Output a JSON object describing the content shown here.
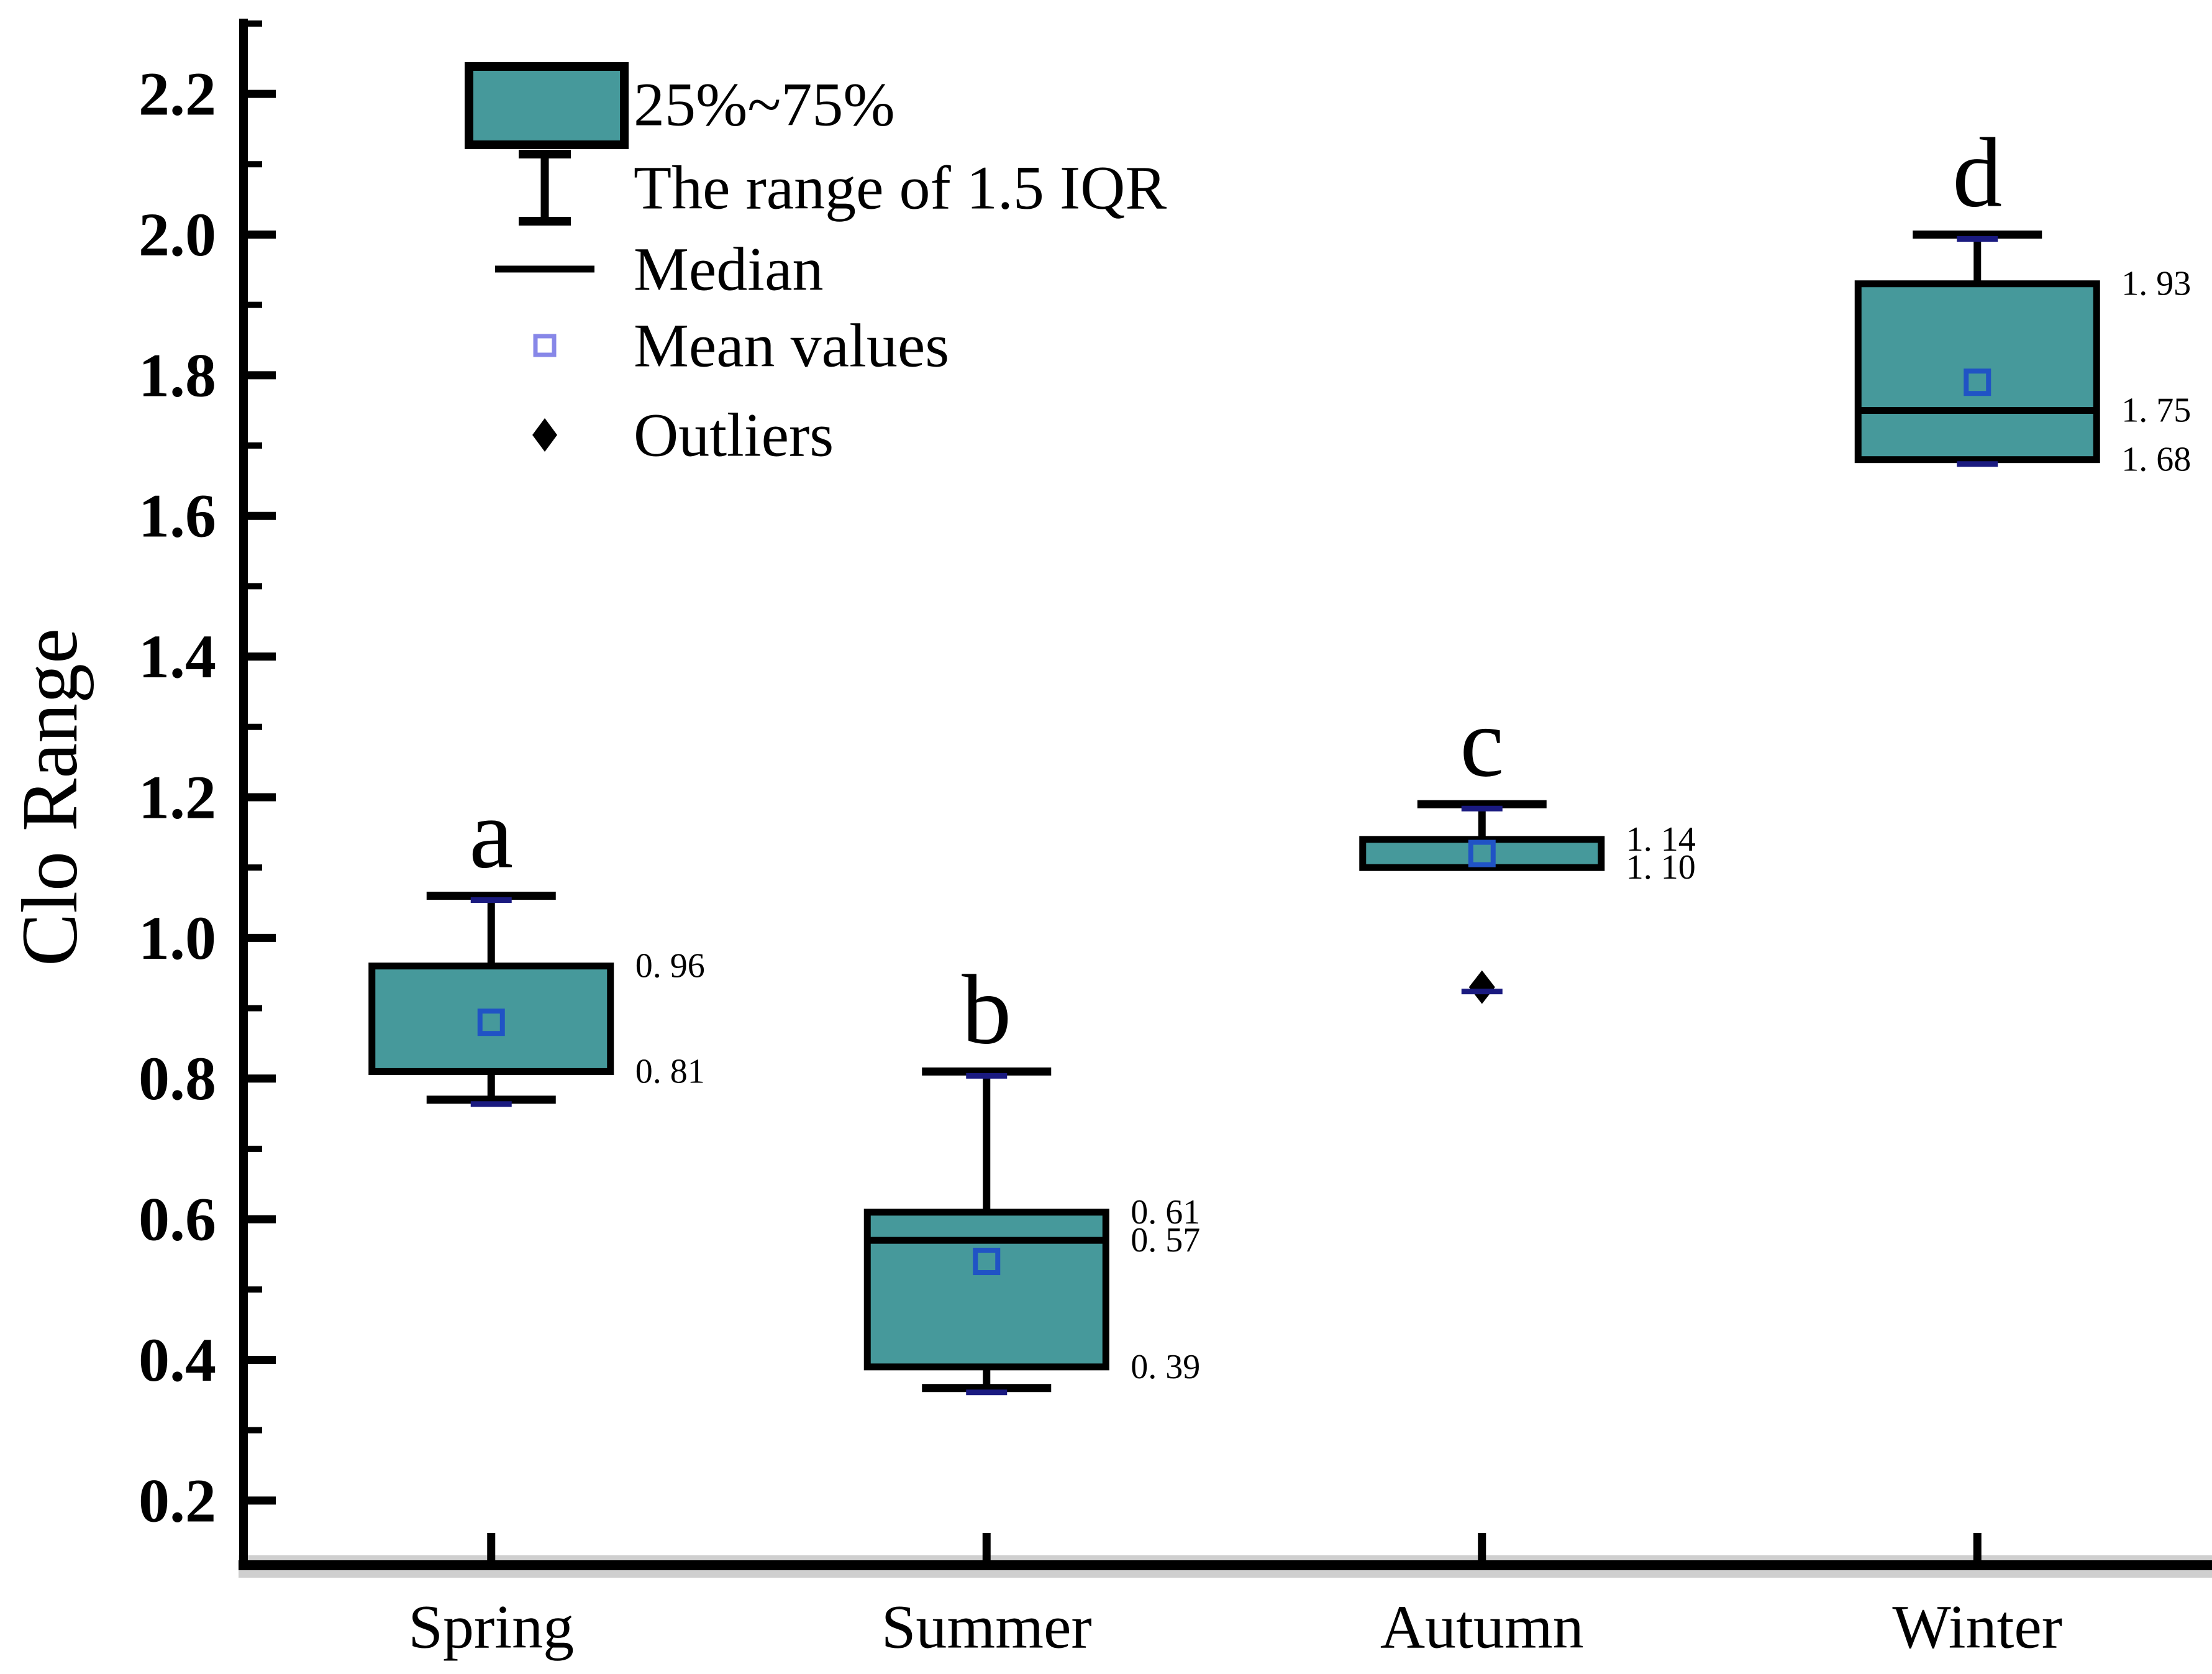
{
  "chart_data": {
    "type": "boxplot",
    "title": "",
    "ylabel": "Clo Range",
    "xlabel": "",
    "grid": false,
    "legend_position": "top-left-inside",
    "categories": [
      "Spring",
      "Summer",
      "Autumn",
      "Winter"
    ],
    "ylim": [
      0.108,
      2.307
    ],
    "yticks": [
      {
        "v": 0.2,
        "label": "0.2"
      },
      {
        "v": 0.4,
        "label": "0.4"
      },
      {
        "v": 0.6,
        "label": "0.6"
      },
      {
        "v": 0.8,
        "label": "0.8"
      },
      {
        "v": 1.0,
        "label": "1.0"
      },
      {
        "v": 1.2,
        "label": "1.2"
      },
      {
        "v": 1.4,
        "label": "1.4"
      },
      {
        "v": 1.6,
        "label": "1.6"
      },
      {
        "v": 1.8,
        "label": "1.8"
      },
      {
        "v": 2.0,
        "label": "2.0"
      },
      {
        "v": 2.2,
        "label": "2.2"
      }
    ],
    "yticks_minor": [
      0.3,
      0.5,
      0.7,
      0.9,
      1.1,
      1.3,
      1.5,
      1.7,
      1.9,
      2.1,
      2.3
    ],
    "colors": {
      "box_fill": "#46999B",
      "box_stroke": "#000000",
      "axis": "#000000",
      "axis_halo": "#CFCFCF",
      "mean_marker": "#2053C5",
      "legend_mean_marker": "#8787E8",
      "minmax_dash": "#1A1A80",
      "value_label": "#6B7178",
      "text": "#000000"
    },
    "series": [
      {
        "category": "Spring",
        "sig_letter": "a",
        "whisker_high": 1.06,
        "q3": 0.96,
        "median": null,
        "mean": 0.88,
        "q1": 0.81,
        "whisker_low": 0.77,
        "data_max": 1.06,
        "data_min": 0.77,
        "outliers": [],
        "value_labels": [
          {
            "v": 0.96,
            "text": "0. 96"
          },
          {
            "v": 0.81,
            "text": "0. 81"
          }
        ]
      },
      {
        "category": "Summer",
        "sig_letter": "b",
        "whisker_high": 0.81,
        "q3": 0.61,
        "median": 0.57,
        "mean": 0.54,
        "q1": 0.39,
        "whisker_low": 0.36,
        "data_max": 0.81,
        "data_min": 0.36,
        "outliers": [],
        "value_labels": [
          {
            "v": 0.61,
            "text": "0. 61"
          },
          {
            "v": 0.57,
            "text": "0. 57"
          },
          {
            "v": 0.39,
            "text": "0. 39"
          }
        ]
      },
      {
        "category": "Autumn",
        "sig_letter": "c",
        "whisker_high": 1.19,
        "q3": 1.14,
        "median": null,
        "mean": 1.12,
        "q1": 1.1,
        "whisker_low": null,
        "data_max": 1.19,
        "data_min": 0.93,
        "outliers": [
          0.93
        ],
        "value_labels": [
          {
            "v": 1.14,
            "text": "1. 14"
          },
          {
            "v": 1.1,
            "text": "1. 10"
          }
        ]
      },
      {
        "category": "Winter",
        "sig_letter": "d",
        "whisker_high": 2.0,
        "q3": 1.93,
        "median": 1.75,
        "mean": 1.79,
        "q1": 1.68,
        "whisker_low": null,
        "data_max": 2.0,
        "data_min": 1.68,
        "outliers": [],
        "value_labels": [
          {
            "v": 1.93,
            "text": "1. 93"
          },
          {
            "v": 1.75,
            "text": "1. 75"
          },
          {
            "v": 1.68,
            "text": "1. 68"
          }
        ]
      }
    ],
    "legend": [
      {
        "symbol": "box",
        "label": "25%~75%"
      },
      {
        "symbol": "whisker-range",
        "label": "The range of 1.5 IQR"
      },
      {
        "symbol": "median-line",
        "label": "Median"
      },
      {
        "symbol": "mean-square",
        "label": "Mean values"
      },
      {
        "symbol": "outlier-diamond",
        "label": "Outliers"
      }
    ]
  }
}
